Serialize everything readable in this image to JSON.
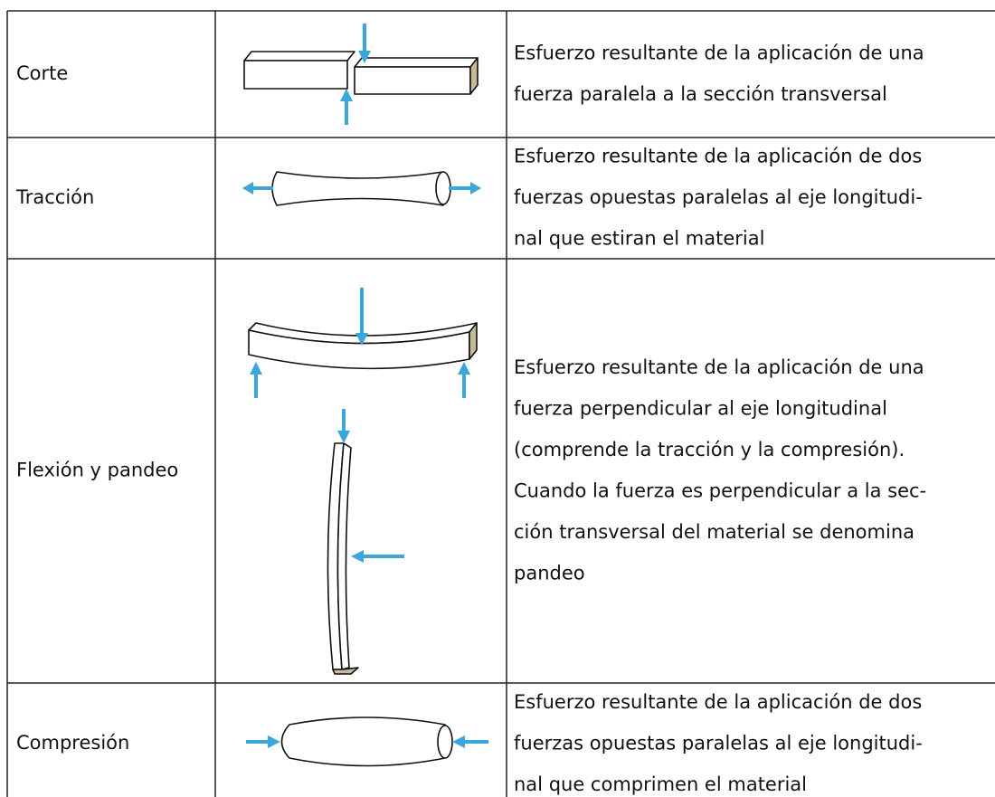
{
  "table": {
    "rows": [
      {
        "name": "Corte",
        "description": [
          "Esfuerzo resultante de la aplicación de una",
          "fuerza paralela a la sección transversal"
        ]
      },
      {
        "name": "Tracción",
        "description": [
          "Esfuerzo resultante de la aplicación de dos",
          "fuerzas opuestas paralelas al eje longitudi-",
          "nal que estiran el material"
        ]
      },
      {
        "name": "Flexión y pandeo",
        "description": [
          "Esfuerzo resultante de la aplicación de una",
          "fuerza perpendicular al eje longitudinal",
          "(comprende la tracción y la compresión).",
          "Cuando la fuerza es perpendicular a la sec-",
          "ción transversal del material se denomina",
          "pandeo"
        ]
      },
      {
        "name": "Compresión",
        "description": [
          "Esfuerzo resultante de la aplicación de dos",
          "fuerzas opuestas paralelas al eje longitudi-",
          "nal que comprimen el material"
        ]
      }
    ]
  }
}
